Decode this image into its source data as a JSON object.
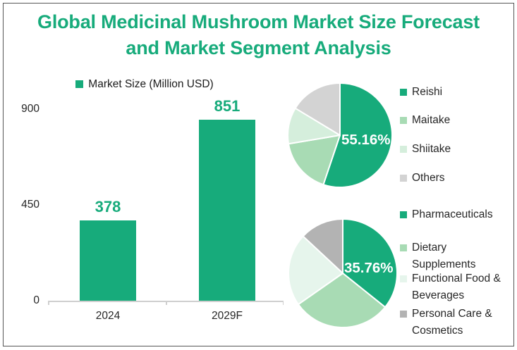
{
  "title": {
    "line1": "Global Medicinal Mushroom Market Size Forecast",
    "line2": "and Market Segment Analysis"
  },
  "colors": {
    "brand_green": "#17AB7B",
    "medium_green": "#A8DBB4",
    "light_green": "#D5EEDC",
    "pale_green": "#E6F5EC",
    "light_gray": "#D3D3D3",
    "medium_gray": "#B3B3B3",
    "axis_gray": "#CFCFCF",
    "text_dark": "#262626"
  },
  "chart_data": [
    {
      "type": "bar",
      "legend": [
        "Market Size (Million USD)"
      ],
      "categories": [
        "2024",
        "2029F"
      ],
      "values": [
        378,
        851
      ],
      "data_labels": [
        "378",
        "851"
      ],
      "ylim": [
        0,
        900
      ],
      "yticks": [
        0,
        450,
        900
      ],
      "bar_color": "#17AB7B",
      "grid": false,
      "legend_position": "top"
    },
    {
      "type": "pie",
      "name": "market-segment-by-type",
      "start_angle_deg": 0,
      "direction": "clockwise",
      "shown_label": "55.16%",
      "slices": [
        {
          "label": "Reishi",
          "value": 55.16,
          "color": "#17AB7B"
        },
        {
          "label": "Maitake",
          "value": 17.2,
          "color": "#A8DBB4"
        },
        {
          "label": "Shiitake",
          "value": 11.3,
          "color": "#D5EEDC"
        },
        {
          "label": "Others",
          "value": 16.34,
          "color": "#D3D3D3"
        }
      ]
    },
    {
      "type": "pie",
      "name": "market-segment-by-application",
      "start_angle_deg": 0,
      "direction": "clockwise",
      "shown_label": "35.76%",
      "slices": [
        {
          "label": "Pharmaceuticals",
          "value": 35.76,
          "color": "#17AB7B"
        },
        {
          "label": "Dietary Supplements",
          "value": 29.5,
          "color": "#A8DBB4"
        },
        {
          "label": "Functional Food & Beverages",
          "value": 21.7,
          "color": "#E6F5EC"
        },
        {
          "label": "Personal Care & Cosmetics",
          "value": 13.04,
          "color": "#B3B3B3"
        }
      ]
    }
  ],
  "bar_legend": {
    "label": "Market Size (Million USD)",
    "color": "#17AB7B"
  },
  "legends": [
    {
      "items": [
        {
          "lines": [
            "Reishi"
          ],
          "color": "#17AB7B"
        },
        {
          "lines": [
            "Maitake"
          ],
          "color": "#A8DBB4"
        },
        {
          "lines": [
            "Shiitake"
          ],
          "color": "#D5EEDC"
        },
        {
          "lines": [
            "Others"
          ],
          "color": "#D3D3D3"
        }
      ]
    },
    {
      "items": [
        {
          "lines": [
            "Pharmaceuticals"
          ],
          "color": "#17AB7B"
        },
        {
          "lines": [
            "Dietary",
            "Supplements"
          ],
          "color": "#A8DBB4"
        },
        {
          "lines": [
            "Functional Food &",
            "Beverages"
          ],
          "color": "#E6F5EC"
        },
        {
          "lines": [
            "Personal Care &",
            "Cosmetics"
          ],
          "color": "#B3B3B3"
        }
      ]
    }
  ]
}
